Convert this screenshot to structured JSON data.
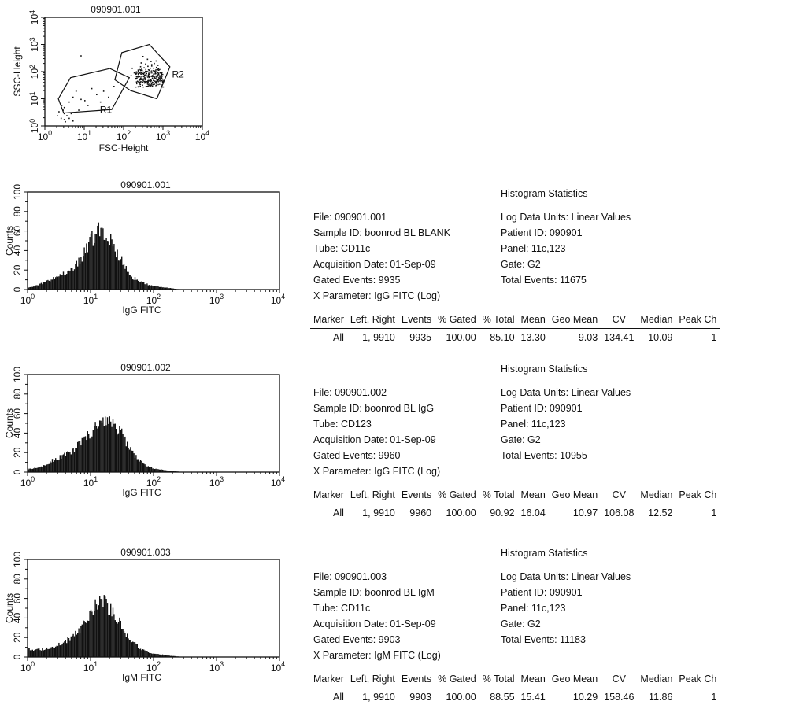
{
  "scatter_plot": {
    "title": "090901.001",
    "xlabel": "FSC-Height",
    "ylabel": "SSC-Height",
    "regions": [
      "R1",
      "R2"
    ]
  },
  "histograms": [
    {
      "title": "090901.001",
      "xlabel": "IgG FITC",
      "ylabel": "Counts",
      "stats": {
        "heading": "Histogram Statistics",
        "file": "File: 090901.001",
        "sample_id": "Sample ID: boonrod BL BLANK",
        "tube": "Tube: CD11c",
        "acq_date": "Acquisition Date: 01-Sep-09",
        "gated_events": "Gated Events: 9935",
        "x_param": "X Parameter: IgG FITC (Log)",
        "log_units": "Log Data Units: Linear Values",
        "patient_id": "Patient ID: 090901",
        "panel": "Panel: 11c,123",
        "gate": "Gate: G2",
        "total_events": "Total Events: 11675",
        "row": {
          "marker": "All",
          "left_right": "1, 9910",
          "events": "9935",
          "pct_gated": "100.00",
          "pct_total": "85.10",
          "mean": "13.30",
          "geo_mean": "9.03",
          "cv": "134.41",
          "median": "10.09",
          "peak_ch": "1"
        }
      }
    },
    {
      "title": "090901.002",
      "xlabel": "IgG FITC",
      "ylabel": "Counts",
      "stats": {
        "heading": "Histogram Statistics",
        "file": "File: 090901.002",
        "sample_id": "Sample ID: boonrod BL IgG",
        "tube": "Tube: CD123",
        "acq_date": "Acquisition Date: 01-Sep-09",
        "gated_events": "Gated Events: 9960",
        "x_param": "X Parameter: IgG FITC (Log)",
        "log_units": "Log Data Units: Linear Values",
        "patient_id": "Patient ID: 090901",
        "panel": "Panel: 11c,123",
        "gate": "Gate: G2",
        "total_events": "Total Events: 10955",
        "row": {
          "marker": "All",
          "left_right": "1, 9910",
          "events": "9960",
          "pct_gated": "100.00",
          "pct_total": "90.92",
          "mean": "16.04",
          "geo_mean": "10.97",
          "cv": "106.08",
          "median": "12.52",
          "peak_ch": "1"
        }
      }
    },
    {
      "title": "090901.003",
      "xlabel": "IgM FITC",
      "ylabel": "Counts",
      "stats": {
        "heading": "Histogram Statistics",
        "file": "File: 090901.003",
        "sample_id": "Sample ID: boonrod BL IgM",
        "tube": "Tube: CD11c",
        "acq_date": "Acquisition Date: 01-Sep-09",
        "gated_events": "Gated Events: 9903",
        "x_param": "X Parameter: IgM FITC (Log)",
        "log_units": "Log Data Units: Linear Values",
        "patient_id": "Patient ID: 090901",
        "panel": "Panel: 11c,123",
        "gate": "Gate: G2",
        "total_events": "Total Events: 11183",
        "row": {
          "marker": "All",
          "left_right": "1, 9910",
          "events": "9903",
          "pct_gated": "100.00",
          "pct_total": "88.55",
          "mean": "15.41",
          "geo_mean": "10.29",
          "cv": "158.46",
          "median": "11.86",
          "peak_ch": "1"
        }
      }
    }
  ],
  "table_headers": [
    "Marker",
    "Left, Right",
    "Events",
    "% Gated",
    "% Total",
    "Mean",
    "Geo Mean",
    "CV",
    "Median",
    "Peak Ch"
  ],
  "tick_labels": {
    "log_x": [
      "10",
      "10",
      "10",
      "10",
      "10"
    ],
    "log_x_exp": [
      "0",
      "1",
      "2",
      "3",
      "4"
    ],
    "counts_y": [
      "0",
      "20",
      "40",
      "60",
      "80",
      "100"
    ]
  },
  "chart_data": [
    {
      "type": "scatter",
      "title": "090901.001",
      "xlabel": "FSC-Height",
      "ylabel": "SSC-Height",
      "xscale": "log",
      "yscale": "log",
      "xlim": [
        1,
        10000
      ],
      "ylim": [
        1,
        10000
      ],
      "gates": [
        {
          "name": "R1",
          "polygon": [
            [
              2.2,
              10
            ],
            [
              4.5,
              60
            ],
            [
              45,
              130
            ],
            [
              140,
              60
            ],
            [
              50,
              4
            ],
            [
              3,
              3
            ]
          ]
        },
        {
          "name": "R2",
          "polygon": [
            [
              60,
              50
            ],
            [
              90,
              500
            ],
            [
              450,
              1000
            ],
            [
              1500,
              150
            ],
            [
              700,
              10
            ],
            [
              150,
              20
            ]
          ]
        }
      ],
      "points": [
        [
          310,
          70
        ],
        [
          250,
          52
        ],
        [
          420,
          88
        ],
        [
          520,
          60
        ],
        [
          180,
          95
        ],
        [
          380,
          45
        ],
        [
          600,
          110
        ],
        [
          280,
          130
        ],
        [
          700,
          55
        ],
        [
          800,
          70
        ],
        [
          330,
          40
        ],
        [
          460,
          140
        ],
        [
          210,
          60
        ],
        [
          560,
          85
        ],
        [
          640,
          42
        ],
        [
          900,
          60
        ],
        [
          150,
          75
        ],
        [
          260,
          160
        ],
        [
          350,
          200
        ],
        [
          480,
          250
        ],
        [
          720,
          180
        ],
        [
          390,
          300
        ],
        [
          540,
          35
        ],
        [
          620,
          95
        ],
        [
          300,
          90
        ],
        [
          430,
          65
        ],
        [
          680,
          48
        ],
        [
          760,
          120
        ],
        [
          230,
          110
        ],
        [
          500,
          170
        ],
        [
          350,
          58
        ],
        [
          410,
          78
        ],
        [
          590,
          66
        ],
        [
          470,
          52
        ],
        [
          380,
          105
        ],
        [
          820,
          95
        ],
        [
          160,
          140
        ],
        [
          270,
          220
        ],
        [
          650,
          260
        ],
        [
          300,
          380
        ],
        [
          440,
          120
        ],
        [
          560,
          140
        ],
        [
          300,
          55
        ],
        [
          360,
          72
        ],
        [
          440,
          48
        ],
        [
          520,
          75
        ],
        [
          610,
          58
        ],
        [
          700,
          80
        ],
        [
          760,
          62
        ],
        [
          860,
          45
        ],
        [
          200,
          85
        ],
        [
          240,
          125
        ],
        [
          320,
          145
        ],
        [
          400,
          165
        ],
        [
          500,
          190
        ],
        [
          580,
          210
        ],
        [
          660,
          150
        ],
        [
          740,
          135
        ],
        [
          250,
          70
        ],
        [
          330,
          95
        ],
        [
          680,
          65
        ],
        [
          720,
          50
        ],
        [
          640,
          72
        ],
        [
          780,
          58
        ],
        [
          580,
          62
        ],
        [
          700,
          75
        ],
        [
          750,
          85
        ],
        [
          660,
          55
        ],
        [
          800,
          48
        ],
        [
          620,
          90
        ],
        [
          3,
          5
        ],
        [
          5,
          12
        ],
        [
          8,
          10
        ],
        [
          12,
          6
        ],
        [
          20,
          15
        ],
        [
          25,
          8
        ],
        [
          6,
          20
        ],
        [
          15,
          25
        ],
        [
          40,
          12
        ],
        [
          10,
          9
        ],
        [
          30,
          20
        ],
        [
          55,
          30
        ],
        [
          4,
          8
        ],
        [
          7,
          4
        ],
        [
          2.5,
          2
        ],
        [
          3,
          3
        ],
        [
          2.8,
          4
        ],
        [
          3.5,
          2.5
        ],
        [
          2.2,
          3.5
        ],
        [
          4,
          2
        ],
        [
          3.2,
          1.5
        ],
        [
          2.6,
          6
        ],
        [
          4.5,
          3
        ],
        [
          2,
          2.5
        ],
        [
          8,
          400
        ],
        [
          3,
          1.8
        ],
        [
          5,
          1.6
        ]
      ]
    },
    {
      "type": "area",
      "title": "090901.001",
      "xlabel": "IgG FITC",
      "ylabel": "Counts",
      "xscale": "log",
      "xlim": [
        1,
        10000
      ],
      "ylim": [
        0,
        100
      ],
      "x": [
        1,
        1.3,
        1.8,
        2.5,
        3.5,
        5,
        7,
        9,
        11,
        13,
        15,
        18,
        22,
        28,
        35,
        45,
        60,
        80,
        110,
        150,
        200,
        300
      ],
      "values": [
        2,
        4,
        7,
        11,
        16,
        22,
        33,
        45,
        55,
        62,
        64,
        58,
        46,
        34,
        22,
        13,
        8,
        5,
        3,
        2,
        1,
        0
      ]
    },
    {
      "type": "area",
      "title": "090901.002",
      "xlabel": "IgG FITC",
      "ylabel": "Counts",
      "xscale": "log",
      "xlim": [
        1,
        10000
      ],
      "ylim": [
        0,
        100
      ],
      "x": [
        1,
        1.3,
        1.8,
        2.5,
        3.5,
        5,
        7,
        9,
        11,
        13,
        15,
        18,
        22,
        28,
        35,
        45,
        60,
        80,
        110,
        150,
        200,
        300
      ],
      "values": [
        3,
        4,
        7,
        12,
        16,
        22,
        30,
        38,
        47,
        53,
        55,
        54,
        50,
        42,
        32,
        20,
        12,
        6,
        3,
        2,
        1,
        0
      ]
    },
    {
      "type": "area",
      "title": "090901.003",
      "xlabel": "IgM FITC",
      "ylabel": "Counts",
      "xscale": "log",
      "xlim": [
        1,
        10000
      ],
      "ylim": [
        0,
        100
      ],
      "x": [
        1,
        1.3,
        1.8,
        2.5,
        3.5,
        5,
        7,
        9,
        11,
        13,
        15,
        18,
        22,
        28,
        35,
        45,
        60,
        80,
        110,
        150,
        200,
        300
      ],
      "values": [
        8,
        7,
        8,
        10,
        14,
        20,
        30,
        40,
        48,
        54,
        56,
        53,
        45,
        35,
        24,
        15,
        9,
        5,
        3,
        2,
        1,
        0
      ]
    }
  ]
}
